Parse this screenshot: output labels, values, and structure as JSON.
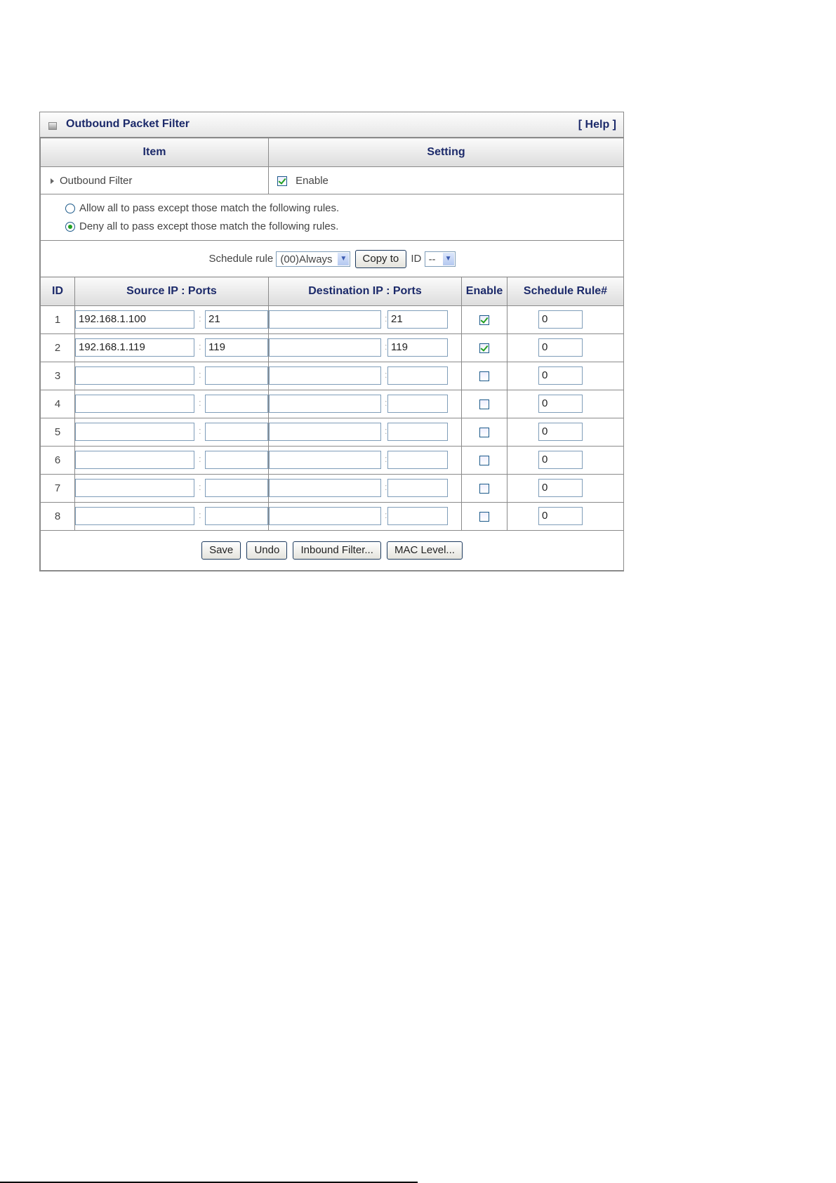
{
  "panel": {
    "title": "Outbound Packet Filter",
    "help_label": "[ Help ]"
  },
  "header": {
    "item": "Item",
    "setting": "Setting"
  },
  "outbound": {
    "label": "Outbound Filter",
    "enable_label": "Enable",
    "enabled": true
  },
  "policy": {
    "options": [
      {
        "label": "Allow all to pass except those match the following rules.",
        "selected": false
      },
      {
        "label": "Deny all to pass except those match the following rules.",
        "selected": true
      }
    ]
  },
  "schedule": {
    "label": "Schedule rule",
    "value": "(00)Always",
    "copy_label": "Copy to",
    "id_label": "ID",
    "id_value": "--",
    "dropdown_icon": "chevron-down"
  },
  "columns": {
    "id": "ID",
    "source": "Source IP : Ports",
    "dest": "Destination IP : Ports",
    "enable": "Enable",
    "schedule": "Schedule Rule#"
  },
  "rules": [
    {
      "id": "1",
      "src_ip": "192.168.1.100",
      "src_port": "21",
      "dst_ip": "",
      "dst_port": "21",
      "enabled": true,
      "schedule": "0"
    },
    {
      "id": "2",
      "src_ip": "192.168.1.119",
      "src_port": "119",
      "dst_ip": "",
      "dst_port": "119",
      "enabled": true,
      "schedule": "0"
    },
    {
      "id": "3",
      "src_ip": "",
      "src_port": "",
      "dst_ip": "",
      "dst_port": "",
      "enabled": false,
      "schedule": "0"
    },
    {
      "id": "4",
      "src_ip": "",
      "src_port": "",
      "dst_ip": "",
      "dst_port": "",
      "enabled": false,
      "schedule": "0"
    },
    {
      "id": "5",
      "src_ip": "",
      "src_port": "",
      "dst_ip": "",
      "dst_port": "",
      "enabled": false,
      "schedule": "0"
    },
    {
      "id": "6",
      "src_ip": "",
      "src_port": "",
      "dst_ip": "",
      "dst_port": "",
      "enabled": false,
      "schedule": "0"
    },
    {
      "id": "7",
      "src_ip": "",
      "src_port": "",
      "dst_ip": "",
      "dst_port": "",
      "enabled": false,
      "schedule": "0"
    },
    {
      "id": "8",
      "src_ip": "",
      "src_port": "",
      "dst_ip": "",
      "dst_port": "",
      "enabled": false,
      "schedule": "0"
    }
  ],
  "separator": ":",
  "buttons": {
    "save": "Save",
    "undo": "Undo",
    "inbound": "Inbound Filter...",
    "mac": "MAC Level..."
  },
  "colors": {
    "heading": "#1c2a6a",
    "check": "#22a022",
    "border": "#8a8a8a"
  }
}
